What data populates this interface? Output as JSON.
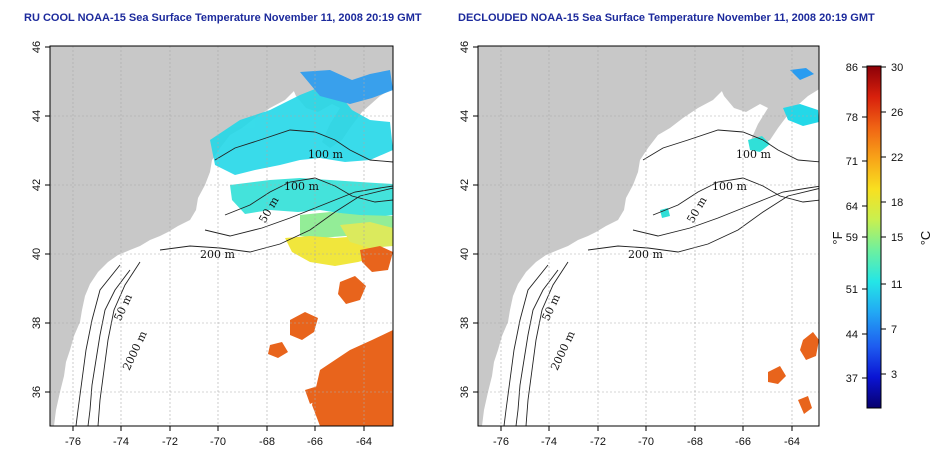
{
  "panels": [
    {
      "id": "ru-cool",
      "title": "RU COOL NOAA-15 Sea Surface Temperature November 11, 2008 20:19 GMT",
      "lon_ticks": [
        "-76",
        "-74",
        "-72",
        "-70",
        "-68",
        "-66",
        "-64"
      ],
      "lat_ticks": [
        "36",
        "38",
        "40",
        "42",
        "44",
        "46"
      ],
      "contour_labels": [
        "100 m",
        "100 m",
        "50 m",
        "200 m",
        "50 m",
        "2000 m"
      ]
    },
    {
      "id": "declouded",
      "title": "DECLOUDED NOAA-15 Sea Surface Temperature November 11, 2008 20:19 GMT",
      "lon_ticks": [
        "-76",
        "-74",
        "-72",
        "-70",
        "-68",
        "-66",
        "-64"
      ],
      "lat_ticks": [
        "36",
        "38",
        "40",
        "42",
        "44",
        "46"
      ],
      "contour_labels": [
        "100 m",
        "100 m",
        "50 m",
        "200 m",
        "50 m",
        "2000 m"
      ]
    }
  ],
  "colorbar": {
    "fahrenheit_label": "°F",
    "celsius_label": "°C",
    "fahrenheit_ticks": [
      "86",
      "78",
      "71",
      "64",
      "59",
      "51",
      "44",
      "37"
    ],
    "celsius_ticks": [
      "30",
      "26",
      "22",
      "18",
      "15",
      "11",
      "7",
      "3"
    ],
    "colors": [
      "#08006e",
      "#0a14d4",
      "#1e5cf0",
      "#22a8f4",
      "#24e6e6",
      "#6cf0a0",
      "#c8f050",
      "#f8e020",
      "#f8a418",
      "#f06414",
      "#d8200c",
      "#8c0008"
    ]
  },
  "colors": {
    "land": "#c8c8c8",
    "water_nodata": "#ffffff",
    "title": "#1c2a9c",
    "warm_sst": "#e8641c"
  }
}
